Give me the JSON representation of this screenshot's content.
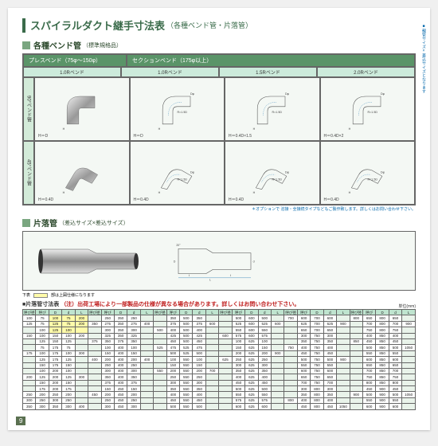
{
  "title": {
    "main": "スパイラルダクト継手寸法表",
    "sub": "（各種ベンド管・片落管）"
  },
  "section1": {
    "title": "各種ベンド管",
    "note": "（標準規格品）",
    "leftGroup": "プレスベンド（75φ〜150φ）",
    "rightGroup": "セクションベンド（175φ以上）",
    "subHeaders": [
      "1.0Rベンド",
      "1.0Rベンド",
      "1.5Rベンド",
      "2.0Rベンド"
    ],
    "row90": "90°ベンド管",
    "row45": "45°ベンド管",
    "captions90": [
      "H＝D",
      "H＝D",
      "H＝0.4D×1.5",
      "H＝0.4D×2"
    ],
    "captions45": [
      "H＝0.4D",
      "H＝0.4D",
      "H＝0.4D",
      "H＝0.4D"
    ],
    "footnote": "＊オプションで 溶接・全接続タイプなどもご製作致します。詳しくはお問い合わせ下さい。"
  },
  "section2": {
    "title": "片落管",
    "note": "（差込サイズ×差込サイズ）",
    "legend": "下表",
    "legendNote": "部は上図仕様になります",
    "sideNote": "■親管サイズ×差込サイズとなります",
    "tableTitle": "■片落管寸法表",
    "tableWarn": "（注）出荷工場により一部製品の仕様が異なる場合があります。詳しくはお問い合わせ下さい。",
    "unit": "単位(mm)",
    "colHead": [
      "呼び径",
      "呼び",
      "D",
      "d",
      "L",
      "呼び径",
      "呼び",
      "D",
      "d",
      "L",
      "呼び径",
      "呼び",
      "D",
      "d",
      "L",
      "呼び径",
      "呼び",
      "D",
      "d",
      "L",
      "呼び径",
      "呼び",
      "D",
      "d",
      "L",
      "呼び径",
      "呼び",
      "D",
      "d",
      "L"
    ],
    "rows": [
      [
        "100",
        "75",
        "100",
        "75",
        "200",
        "",
        "250",
        "350",
        "250",
        "",
        "",
        "350",
        "500",
        "350",
        "",
        "",
        "500",
        "600",
        "500",
        "",
        "700",
        "600",
        "700",
        "600",
        "",
        "800",
        "650",
        "800",
        "650",
        ""
      ],
      [
        "125",
        "75",
        "125",
        "75",
        "200",
        "350",
        "275",
        "350",
        "275",
        "400",
        "",
        "375",
        "500",
        "375",
        "600",
        "",
        "525",
        "600",
        "525",
        "600",
        "",
        "625",
        "700",
        "625",
        "900",
        "",
        "700",
        "800",
        "700",
        "900"
      ],
      [
        "",
        "100",
        "125",
        "100",
        "",
        "",
        "300",
        "350",
        "300",
        "",
        "500",
        "400",
        "500",
        "400",
        "",
        "",
        "550",
        "600",
        "550",
        "",
        "",
        "650",
        "700",
        "650",
        "",
        "",
        "750",
        "800",
        "750",
        ""
      ],
      [
        "150",
        "100",
        "150",
        "100",
        "200",
        "",
        "325",
        "350",
        "325",
        "",
        "",
        "425",
        "500",
        "425",
        "",
        "600",
        "575",
        "600",
        "575",
        "",
        "",
        "300",
        "750",
        "300",
        "",
        "",
        "400",
        "850",
        "400",
        ""
      ],
      [
        "",
        "125",
        "150",
        "125",
        "",
        "375",
        "350",
        "375",
        "350",
        "",
        "",
        "450",
        "500",
        "450",
        "",
        "",
        "100",
        "625",
        "100",
        "",
        "",
        "350",
        "750",
        "350",
        "",
        "850",
        "450",
        "850",
        "450",
        ""
      ],
      [
        "",
        "75",
        "175",
        "75",
        "",
        "",
        "100",
        "400",
        "100",
        "",
        "525",
        "475",
        "525",
        "475",
        "",
        "",
        "150",
        "625",
        "150",
        "",
        "750",
        "400",
        "750",
        "400",
        "",
        "",
        "500",
        "850",
        "500",
        "1050"
      ],
      [
        "175",
        "100",
        "175",
        "100",
        "300",
        "",
        "150",
        "400",
        "150",
        "",
        "",
        "500",
        "525",
        "500",
        "",
        "",
        "200",
        "625",
        "200",
        "900",
        "",
        "450",
        "750",
        "450",
        "",
        "",
        "550",
        "850",
        "550",
        ""
      ],
      [
        "",
        "125",
        "175",
        "125",
        "",
        "400",
        "200",
        "400",
        "200",
        "400",
        "",
        "100",
        "550",
        "100",
        "",
        "625",
        "250",
        "625",
        "250",
        "",
        "",
        "500",
        "750",
        "500",
        "900",
        "",
        "600",
        "850",
        "600",
        ""
      ],
      [
        "",
        "150",
        "175",
        "150",
        "",
        "",
        "250",
        "400",
        "250",
        "",
        "",
        "150",
        "550",
        "150",
        "",
        "",
        "300",
        "625",
        "300",
        "",
        "",
        "550",
        "750",
        "550",
        "",
        "",
        "650",
        "850",
        "650",
        ""
      ],
      [
        "",
        "100",
        "200",
        "100",
        "",
        "",
        "300",
        "400",
        "300",
        "",
        "550",
        "200",
        "550",
        "200",
        "700",
        "",
        "350",
        "625",
        "350",
        "",
        "",
        "600",
        "750",
        "600",
        "",
        "",
        "700",
        "850",
        "700",
        ""
      ],
      [
        "200",
        "125",
        "200",
        "125",
        "300",
        "",
        "350",
        "400",
        "350",
        "",
        "",
        "250",
        "550",
        "250",
        "",
        "",
        "400",
        "625",
        "400",
        "",
        "",
        "650",
        "750",
        "650",
        "",
        "",
        "750",
        "850",
        "750",
        ""
      ],
      [
        "",
        "150",
        "200",
        "150",
        "",
        "",
        "375",
        "400",
        "375",
        "",
        "",
        "300",
        "550",
        "300",
        "",
        "",
        "450",
        "625",
        "450",
        "",
        "",
        "700",
        "750",
        "700",
        "",
        "",
        "800",
        "850",
        "800",
        ""
      ],
      [
        "",
        "175",
        "200",
        "175",
        "",
        "",
        "150",
        "450",
        "150",
        "",
        "",
        "350",
        "550",
        "350",
        "",
        "",
        "500",
        "625",
        "500",
        "",
        "",
        "300",
        "800",
        "300",
        "",
        "",
        "450",
        "900",
        "450",
        ""
      ],
      [
        "250",
        "200",
        "250",
        "200",
        "",
        "450",
        "200",
        "450",
        "200",
        "",
        "",
        "400",
        "550",
        "400",
        "",
        "",
        "550",
        "625",
        "550",
        "",
        "",
        "350",
        "800",
        "350",
        "",
        "900",
        "500",
        "900",
        "500",
        "1050"
      ],
      [
        "300",
        "250",
        "300",
        "250",
        "",
        "",
        "250",
        "450",
        "250",
        "",
        "",
        "450",
        "550",
        "450",
        "",
        "",
        "575",
        "625",
        "575",
        "",
        "800",
        "400",
        "800",
        "400",
        "",
        "",
        "550",
        "900",
        "550",
        ""
      ],
      [
        "350",
        "300",
        "350",
        "300",
        "400",
        "",
        "300",
        "450",
        "300",
        "",
        "",
        "500",
        "550",
        "500",
        "",
        "",
        "600",
        "625",
        "600",
        "",
        "",
        "450",
        "800",
        "450",
        "1050",
        "",
        "600",
        "900",
        "600",
        ""
      ]
    ],
    "blockStarts": [
      0,
      5,
      10,
      15,
      20,
      25
    ]
  },
  "pageNum": "9",
  "colors": {
    "accent": "#3a6b4a",
    "headBg": "#5a9468",
    "cellBg": "#bfe4cf",
    "panelBg": "#f4f8f4",
    "hl": "#fffbaa",
    "blue": "#0066aa"
  }
}
